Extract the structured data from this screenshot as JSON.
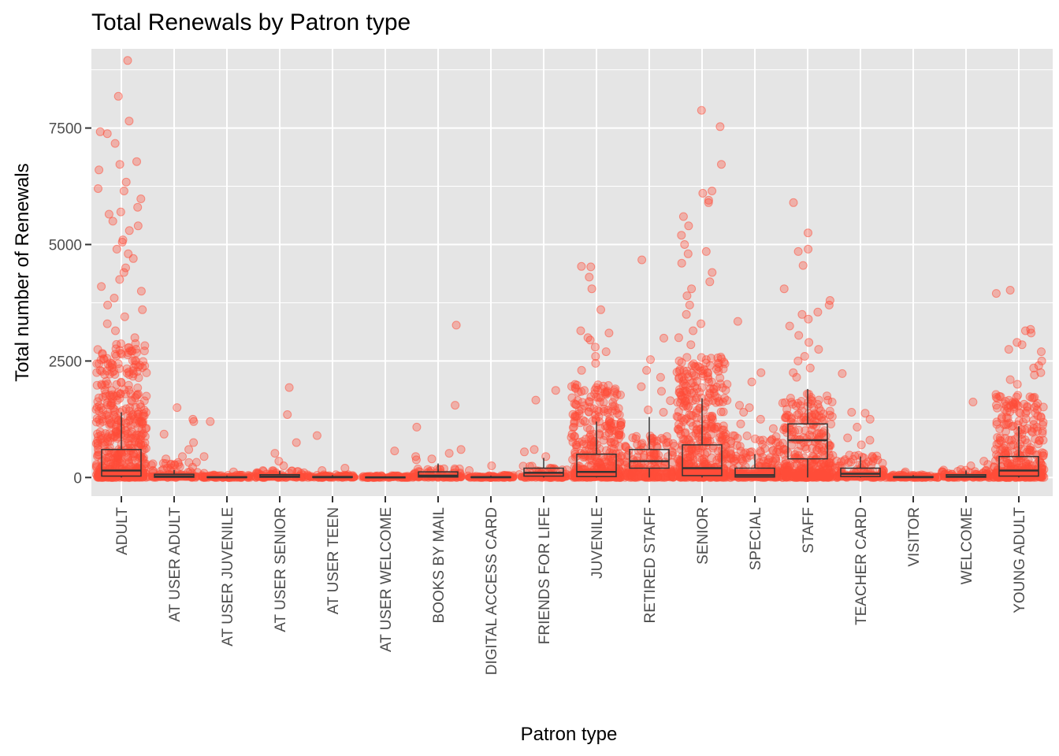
{
  "colors": {
    "panel_background": "#E5E5E5",
    "grid_line": "#FFFFFF",
    "point_color": "#FF4C38",
    "box_color": "#333333",
    "tick_color": "#333333"
  },
  "chart_data": {
    "type": "scatter",
    "subtype": "jitter with boxplot overlay",
    "title": "Total Renewals by Patron type",
    "xlabel": "Patron type",
    "ylabel": "Total number of Renewals",
    "ylim": [
      -400,
      9200
    ],
    "y_ticks": [
      0,
      2500,
      5000,
      7500
    ],
    "grid": true,
    "legend": "none",
    "categories": [
      "ADULT",
      "AT USER ADULT",
      "AT USER JUVENILE",
      "AT USER SENIOR",
      "AT USER TEEN",
      "AT USER WELCOME",
      "BOOKS BY MAIL",
      "DIGITAL ACCESS CARD",
      "FRIENDS FOR LIFE",
      "JUVENILE",
      "RETIRED STAFF",
      "SENIOR",
      "SPECIAL",
      "STAFF",
      "TEACHER CARD",
      "VISITOR",
      "WELCOME",
      "YOUNG ADULT"
    ],
    "series": [
      {
        "category": "ADULT",
        "dense_max": 2900,
        "box": [
          0,
          30,
          150,
          600,
          1400
        ],
        "outliers": [
          8950,
          8180,
          7650,
          7420,
          7380,
          7170,
          6780,
          6720,
          6600,
          6340,
          6200,
          6150,
          5980,
          5800,
          5700,
          5650,
          5500,
          5400,
          5300,
          5100,
          5050,
          4900,
          4800,
          4700,
          4500,
          4400,
          4250,
          4100,
          4000,
          3850,
          3700,
          3600,
          3450,
          3300,
          3150,
          3000
        ]
      },
      {
        "category": "AT USER ADULT",
        "dense_max": 350,
        "box": [
          0,
          5,
          25,
          70,
          160
        ],
        "outliers": [
          1500,
          1250,
          1200,
          930,
          750,
          600,
          450,
          400
        ]
      },
      {
        "category": "AT USER JUVENILE",
        "dense_max": 60,
        "box": [
          0,
          0,
          5,
          15,
          40
        ],
        "outliers": [
          1200,
          450,
          120,
          90
        ]
      },
      {
        "category": "AT USER SENIOR",
        "dense_max": 150,
        "box": [
          0,
          5,
          20,
          60,
          140
        ],
        "outliers": [
          1930,
          1350,
          750,
          520,
          350,
          250
        ]
      },
      {
        "category": "AT USER TEEN",
        "dense_max": 60,
        "box": [
          0,
          0,
          5,
          20,
          50
        ],
        "outliers": [
          900,
          200,
          150
        ]
      },
      {
        "category": "AT USER WELCOME",
        "dense_max": 40,
        "box": [
          0,
          0,
          3,
          10,
          25
        ],
        "outliers": [
          570
        ]
      },
      {
        "category": "BOOKS BY MAIL",
        "dense_max": 200,
        "box": [
          0,
          10,
          40,
          120,
          300
        ],
        "outliers": [
          3270,
          1550,
          1080,
          600,
          520,
          450,
          400,
          380
        ]
      },
      {
        "category": "DIGITAL ACCESS CARD",
        "dense_max": 50,
        "box": [
          0,
          0,
          5,
          15,
          40
        ],
        "outliers": [
          250,
          150
        ]
      },
      {
        "category": "FRIENDS FOR LIFE",
        "dense_max": 250,
        "box": [
          0,
          30,
          100,
          200,
          420
        ],
        "outliers": [
          1870,
          1660,
          600,
          550,
          450
        ]
      },
      {
        "category": "JUVENILE",
        "dense_max": 2000,
        "box": [
          0,
          20,
          120,
          500,
          1200
        ],
        "outliers": [
          4530,
          4520,
          4300,
          4050,
          3600,
          3150,
          3100,
          3000,
          2950,
          2800,
          2700,
          2600,
          2450,
          2300
        ]
      },
      {
        "category": "RETIRED STAFF",
        "dense_max": 900,
        "box": [
          0,
          200,
          350,
          600,
          1300
        ],
        "outliers": [
          4670,
          2990,
          2530,
          2300,
          2150,
          1950,
          1850,
          1650,
          1450,
          1400
        ]
      },
      {
        "category": "SENIOR",
        "dense_max": 2600,
        "box": [
          0,
          40,
          200,
          700,
          1700
        ],
        "outliers": [
          7880,
          7530,
          6720,
          6150,
          6100,
          5950,
          5900,
          5600,
          5400,
          5200,
          5000,
          4850,
          4800,
          4600,
          4400,
          4200,
          4050,
          3900,
          3700,
          3500,
          3300,
          3150,
          3000,
          2850
        ]
      },
      {
        "category": "SPECIAL",
        "dense_max": 900,
        "box": [
          0,
          10,
          50,
          200,
          500
        ],
        "outliers": [
          3350,
          2250,
          2050,
          1550,
          1500,
          1400,
          1250,
          1150,
          1050
        ]
      },
      {
        "category": "STAFF",
        "dense_max": 1800,
        "box": [
          0,
          400,
          800,
          1150,
          1900
        ],
        "outliers": [
          5900,
          5250,
          4900,
          4850,
          4550,
          4050,
          3800,
          3700,
          3550,
          3500,
          3400,
          3250,
          3050,
          2900,
          2750,
          2600,
          2500,
          2350,
          2250,
          2150
        ]
      },
      {
        "category": "TEACHER CARD",
        "dense_max": 500,
        "box": [
          0,
          20,
          80,
          200,
          450
        ],
        "outliers": [
          2230,
          1400,
          1380,
          1250,
          1080,
          850,
          800,
          700
        ]
      },
      {
        "category": "VISITOR",
        "dense_max": 60,
        "box": [
          0,
          0,
          5,
          20,
          50
        ],
        "outliers": [
          120,
          90
        ]
      },
      {
        "category": "WELCOME",
        "dense_max": 200,
        "box": [
          0,
          5,
          20,
          60,
          150
        ],
        "outliers": [
          1620,
          350,
          280,
          250
        ]
      },
      {
        "category": "YOUNG ADULT",
        "dense_max": 1800,
        "box": [
          0,
          30,
          150,
          450,
          1100
        ],
        "outliers": [
          4020,
          3950,
          3180,
          3150,
          3100,
          2900,
          2850,
          2750,
          2700,
          2500,
          2400,
          2350,
          2250,
          2200,
          2100,
          2000
        ]
      }
    ]
  }
}
